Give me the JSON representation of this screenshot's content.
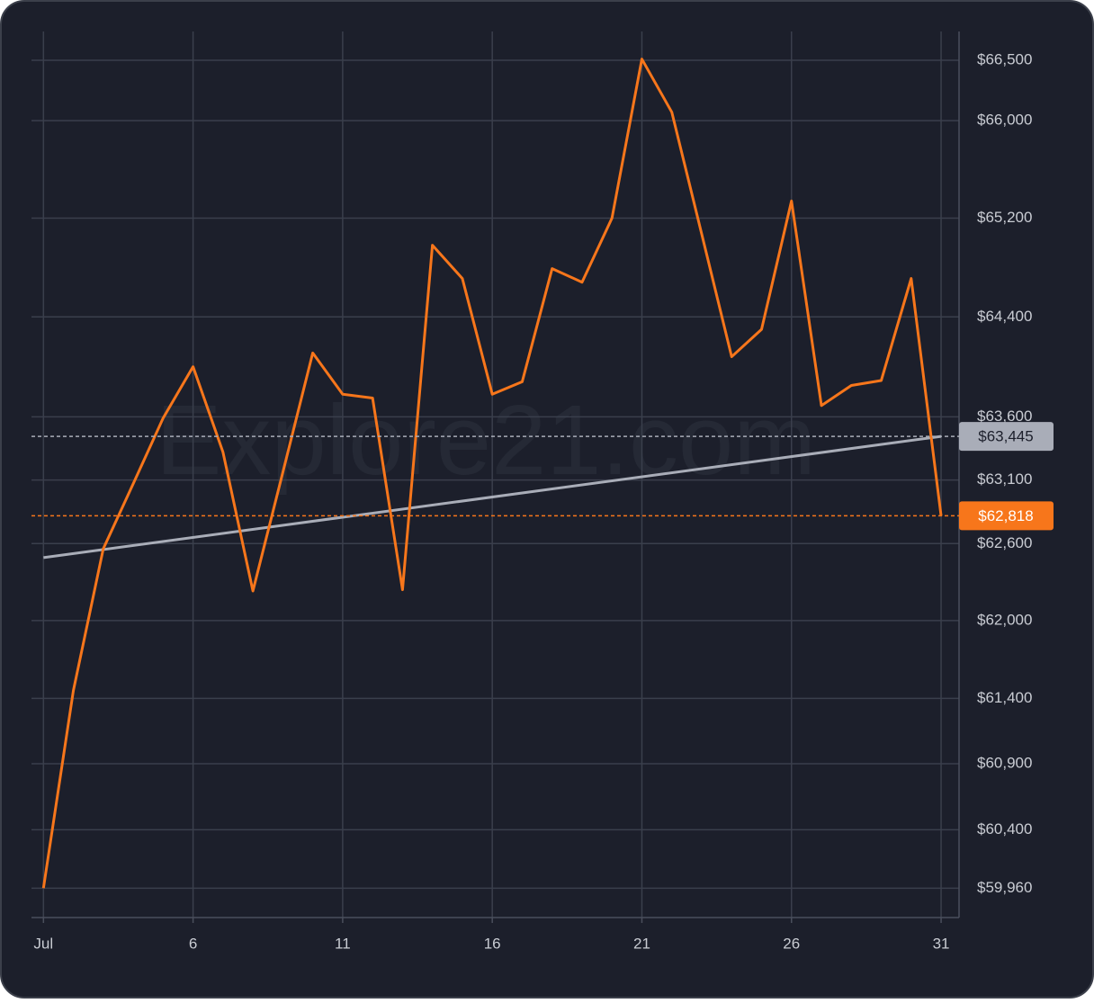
{
  "chart_data": {
    "type": "line",
    "watermark": "Explore21.com",
    "x": [
      1,
      2,
      3,
      4,
      5,
      6,
      7,
      8,
      9,
      10,
      11,
      12,
      13,
      14,
      15,
      16,
      17,
      18,
      19,
      20,
      21,
      22,
      23,
      24,
      25,
      26,
      27,
      28,
      29,
      30,
      31
    ],
    "xlim": [
      0.6,
      31.6
    ],
    "xticks": [
      {
        "value": 1,
        "label": "Jul"
      },
      6,
      11,
      16,
      21,
      26,
      31
    ],
    "ylim": [
      59740,
      66740
    ],
    "log_scale": true,
    "grid": true,
    "yticks": [
      {
        "value": 59960,
        "label": "$59,960"
      },
      {
        "value": 60400,
        "label": "$60,400"
      },
      {
        "value": 60900,
        "label": "$60,900"
      },
      {
        "value": 61400,
        "label": "$61,400"
      },
      {
        "value": 62000,
        "label": "$62,000"
      },
      {
        "value": 62600,
        "label": "$62,600"
      },
      {
        "value": 63100,
        "label": "$63,100"
      },
      {
        "value": 63600,
        "label": "$63,600"
      },
      {
        "value": 64400,
        "label": "$64,400"
      },
      {
        "value": 65200,
        "label": "$65,200"
      },
      {
        "value": 66000,
        "label": "$66,000"
      },
      {
        "value": 66500,
        "label": "$66,500"
      }
    ],
    "series": [
      {
        "color": "#f7761b",
        "values": [
          59960,
          61460,
          62560,
          63070,
          63590,
          64000,
          63320,
          62230,
          63160,
          64110,
          63780,
          63750,
          62240,
          64980,
          64710,
          63780,
          63880,
          64790,
          64680,
          65200,
          66510,
          66070,
          65070,
          64080,
          64300,
          65340,
          63690,
          63850,
          63890,
          64710,
          62818
        ]
      },
      {
        "color": "#a9adb8",
        "x": [
          1,
          31
        ],
        "values": [
          62490,
          63445
        ]
      }
    ],
    "price_lines": [
      {
        "value": 63445,
        "label": "$63,445",
        "color": "#a9adb8"
      },
      {
        "value": 62818,
        "label": "$62,818",
        "color": "#f7761b"
      }
    ]
  }
}
